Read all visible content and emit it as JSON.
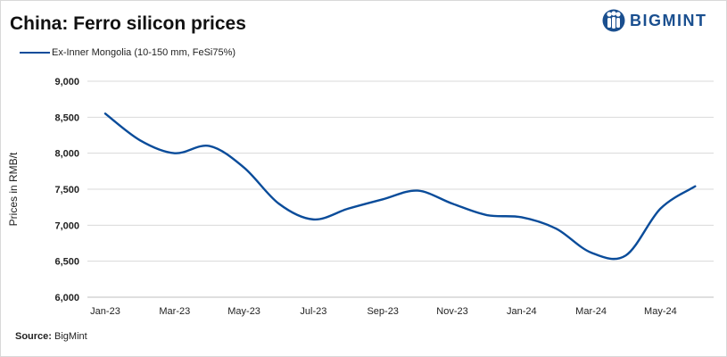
{
  "header": {
    "title": "China: Ferro silicon prices",
    "logo_text": "BIGMINT",
    "logo_icon": "bigmint-figures-icon"
  },
  "source": {
    "label": "Source:",
    "value": "BigMint"
  },
  "colors": {
    "series": "#0a4c9a",
    "brand": "#1a4f8f",
    "grid": "#d9d9d9"
  },
  "chart_data": {
    "type": "line",
    "ylabel": "Prices in RMB/t",
    "xlabel": "",
    "ylim": [
      6000,
      9000
    ],
    "yticks": [
      6000,
      6500,
      7000,
      7500,
      8000,
      8500,
      9000
    ],
    "ytick_labels": [
      "6,000",
      "6,500",
      "7,000",
      "7,500",
      "8,000",
      "8,500",
      "9,000"
    ],
    "xticks": [
      "Jan-23",
      "Mar-23",
      "May-23",
      "Jul-23",
      "Sep-23",
      "Nov-23",
      "Jan-24",
      "Mar-24",
      "May-24"
    ],
    "grid": "horizontal",
    "legend_position": "top-left",
    "x": [
      "Jan-23",
      "Feb-23",
      "Mar-23",
      "Apr-23",
      "May-23",
      "Jun-23",
      "Jul-23",
      "Aug-23",
      "Sep-23",
      "Oct-23",
      "Nov-23",
      "Dec-23",
      "Jan-24",
      "Feb-24",
      "Mar-24",
      "Apr-24",
      "May-24",
      "Jun-24"
    ],
    "series": [
      {
        "name": "Ex-Inner Mongolia (10-150 mm, FeSi75%)",
        "values": [
          8550,
          8180,
          8000,
          8100,
          7800,
          7300,
          7080,
          7230,
          7360,
          7480,
          7300,
          7140,
          7110,
          6950,
          6620,
          6580,
          7230,
          7540
        ]
      }
    ]
  }
}
